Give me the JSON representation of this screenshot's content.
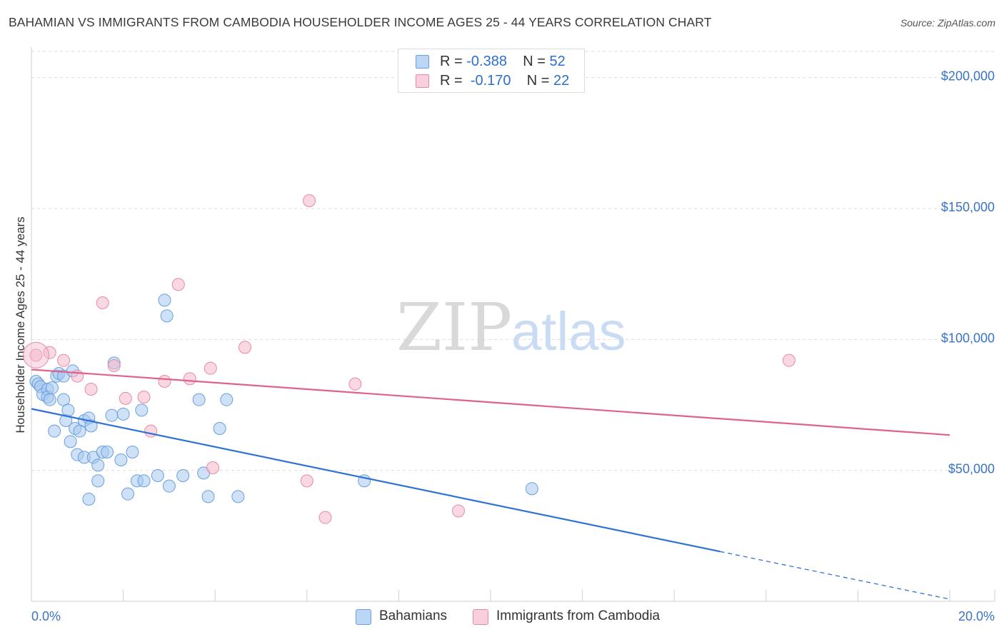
{
  "header": {
    "title": "BAHAMIAN VS IMMIGRANTS FROM CAMBODIA HOUSEHOLDER INCOME AGES 25 - 44 YEARS CORRELATION CHART",
    "source": "Source: ZipAtlas.com"
  },
  "watermark": {
    "zip": "ZIP",
    "atlas": "atlas"
  },
  "stats_legend": {
    "rows": [
      {
        "r_label": "R =",
        "r_value": "-0.388",
        "n_label": "N =",
        "n_value": "52",
        "color": "#a8c8f0"
      },
      {
        "r_label": "R =",
        "r_value": "-0.170",
        "n_label": "N =",
        "n_value": "22",
        "color": "#f5b8cb"
      }
    ]
  },
  "chart_data": {
    "type": "scatter",
    "title": "BAHAMIAN VS IMMIGRANTS FROM CAMBODIA HOUSEHOLDER INCOME AGES 25 - 44 YEARS CORRELATION CHART",
    "xlabel": "",
    "ylabel": "Householder Income Ages 25 - 44 years",
    "xlim": [
      0,
      20
    ],
    "ylim": [
      0,
      210000
    ],
    "x_tick_labels": [
      "0.0%",
      "20.0%"
    ],
    "y_ticks": [
      {
        "value": 50000,
        "label": "$50,000"
      },
      {
        "value": 100000,
        "label": "$100,000"
      },
      {
        "value": 150000,
        "label": "$150,000"
      },
      {
        "value": 200000,
        "label": "$200,000"
      }
    ],
    "grid": true,
    "legend_position": "bottom-center",
    "series": [
      {
        "name": "Bahamians",
        "color": "#a8c8f0",
        "stroke": "#6a9fdc",
        "line_color": "#2f72d4",
        "trend": {
          "x0": 0,
          "y0": 73500,
          "x1": 15,
          "y1": 19000,
          "dash_to_x": 20,
          "dash_to_y": 800
        },
        "points": [
          [
            0.1,
            84000
          ],
          [
            0.15,
            83000
          ],
          [
            0.2,
            82000
          ],
          [
            0.25,
            79000
          ],
          [
            0.35,
            81000
          ],
          [
            0.35,
            78000
          ],
          [
            0.4,
            77000
          ],
          [
            0.45,
            81500
          ],
          [
            0.5,
            65000
          ],
          [
            0.55,
            86000
          ],
          [
            0.6,
            87000
          ],
          [
            0.7,
            86000
          ],
          [
            0.7,
            77000
          ],
          [
            0.75,
            69000
          ],
          [
            0.8,
            73000
          ],
          [
            0.85,
            61000
          ],
          [
            0.9,
            88000
          ],
          [
            0.95,
            66000
          ],
          [
            1.0,
            56000
          ],
          [
            1.05,
            65000
          ],
          [
            1.15,
            55000
          ],
          [
            1.15,
            69000
          ],
          [
            1.25,
            70000
          ],
          [
            1.3,
            67000
          ],
          [
            1.35,
            55000
          ],
          [
            1.45,
            46000
          ],
          [
            1.45,
            52000
          ],
          [
            1.55,
            57000
          ],
          [
            1.65,
            57000
          ],
          [
            1.75,
            71000
          ],
          [
            1.8,
            91000
          ],
          [
            1.95,
            54000
          ],
          [
            2.0,
            71500
          ],
          [
            2.1,
            41000
          ],
          [
            2.2,
            57000
          ],
          [
            2.3,
            46000
          ],
          [
            2.4,
            73000
          ],
          [
            2.45,
            46000
          ],
          [
            2.75,
            48000
          ],
          [
            2.9,
            115000
          ],
          [
            2.95,
            109000
          ],
          [
            3.0,
            44000
          ],
          [
            3.3,
            48000
          ],
          [
            3.65,
            77000
          ],
          [
            3.75,
            49000
          ],
          [
            3.85,
            40000
          ],
          [
            4.1,
            66000
          ],
          [
            4.25,
            77000
          ],
          [
            4.5,
            40000
          ],
          [
            7.25,
            46000
          ],
          [
            10.9,
            43000
          ],
          [
            1.25,
            39000
          ]
        ]
      },
      {
        "name": "Immigrants from Cambodia",
        "color": "#f5b8cb",
        "stroke": "#e58aa8",
        "line_color": "#e0628c",
        "trend": {
          "x0": 0,
          "y0": 88500,
          "x1": 20,
          "y1": 63500
        },
        "points": [
          [
            0.1,
            94000
          ],
          [
            0.4,
            95000
          ],
          [
            0.7,
            92000
          ],
          [
            1.0,
            86000
          ],
          [
            1.3,
            81000
          ],
          [
            1.55,
            114000
          ],
          [
            1.8,
            90000
          ],
          [
            2.05,
            77500
          ],
          [
            2.45,
            78000
          ],
          [
            2.6,
            65000
          ],
          [
            2.9,
            84000
          ],
          [
            3.2,
            121000
          ],
          [
            3.45,
            85000
          ],
          [
            3.9,
            89000
          ],
          [
            3.95,
            51000
          ],
          [
            4.65,
            97000
          ],
          [
            6.0,
            46000
          ],
          [
            6.05,
            153000
          ],
          [
            6.4,
            32000
          ],
          [
            7.05,
            83000
          ],
          [
            9.3,
            34500
          ],
          [
            16.5,
            92000
          ]
        ]
      }
    ]
  }
}
